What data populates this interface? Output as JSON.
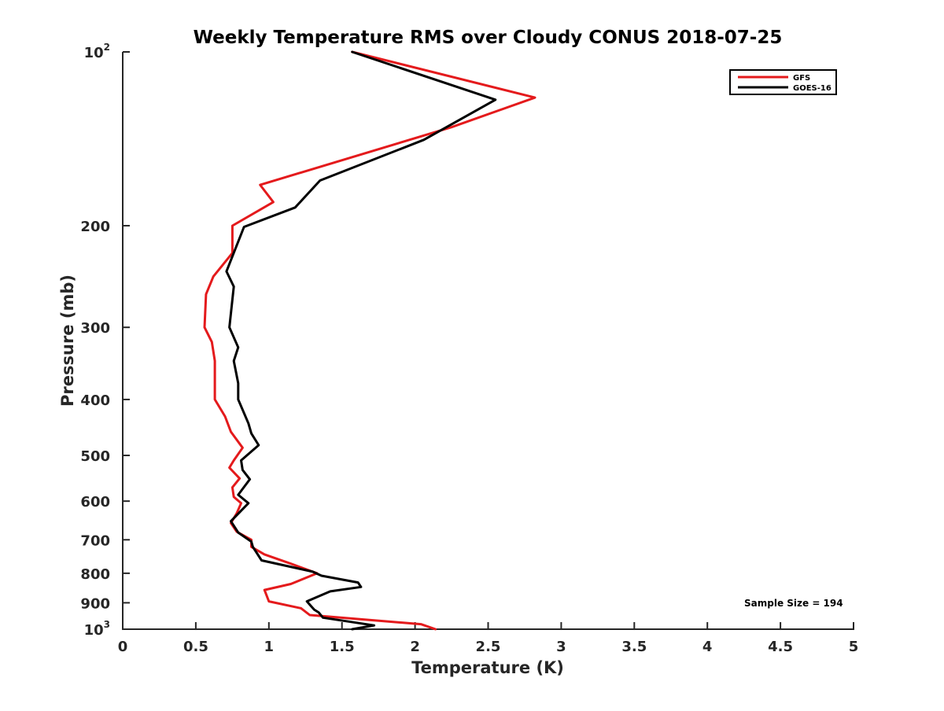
{
  "chart_data": {
    "type": "line",
    "title": "Weekly Temperature RMS over Cloudy CONUS 2018-07-25",
    "xlabel": "Temperature (K)",
    "ylabel": "Pressure (mb)",
    "xlim": [
      0,
      5
    ],
    "ylim": [
      100,
      1000
    ],
    "y_scale": "log",
    "y_reversed": true,
    "grid": false,
    "legend_position": "top-right",
    "x_ticks": [
      {
        "value": 0,
        "label": "0"
      },
      {
        "value": 0.5,
        "label": "0.5"
      },
      {
        "value": 1,
        "label": "1"
      },
      {
        "value": 1.5,
        "label": "1.5"
      },
      {
        "value": 2,
        "label": "2"
      },
      {
        "value": 2.5,
        "label": "2.5"
      },
      {
        "value": 3,
        "label": "3"
      },
      {
        "value": 3.5,
        "label": "3.5"
      },
      {
        "value": 4,
        "label": "4"
      },
      {
        "value": 4.5,
        "label": "4.5"
      },
      {
        "value": 5,
        "label": "5"
      }
    ],
    "y_ticks": [
      {
        "value": 100,
        "base": "10",
        "exp": "2"
      },
      {
        "value": 200,
        "label": "200"
      },
      {
        "value": 300,
        "label": "300"
      },
      {
        "value": 400,
        "label": "400"
      },
      {
        "value": 500,
        "label": "500"
      },
      {
        "value": 600,
        "label": "600"
      },
      {
        "value": 700,
        "label": "700"
      },
      {
        "value": 800,
        "label": "800"
      },
      {
        "value": 900,
        "label": "900"
      },
      {
        "value": 1000,
        "base": "10",
        "exp": "3"
      }
    ],
    "annotation": "Sample Size = 194",
    "series": [
      {
        "name": "GFS",
        "color": "#e41a1c",
        "points": [
          [
            1.57,
            100
          ],
          [
            2.82,
            120
          ],
          [
            2.25,
            135
          ],
          [
            1.65,
            150
          ],
          [
            0.94,
            170
          ],
          [
            1.03,
            182
          ],
          [
            0.75,
            200
          ],
          [
            0.75,
            223
          ],
          [
            0.62,
            245
          ],
          [
            0.57,
            263
          ],
          [
            0.56,
            300
          ],
          [
            0.61,
            318
          ],
          [
            0.63,
            343
          ],
          [
            0.63,
            400
          ],
          [
            0.7,
            428
          ],
          [
            0.74,
            455
          ],
          [
            0.82,
            485
          ],
          [
            0.76,
            510
          ],
          [
            0.73,
            525
          ],
          [
            0.8,
            548
          ],
          [
            0.75,
            568
          ],
          [
            0.76,
            590
          ],
          [
            0.81,
            605
          ],
          [
            0.78,
            630
          ],
          [
            0.74,
            655
          ],
          [
            0.78,
            678
          ],
          [
            0.88,
            700
          ],
          [
            0.88,
            720
          ],
          [
            0.97,
            742
          ],
          [
            1.15,
            770
          ],
          [
            1.33,
            800
          ],
          [
            1.15,
            835
          ],
          [
            0.97,
            855
          ],
          [
            1.0,
            895
          ],
          [
            1.22,
            920
          ],
          [
            1.28,
            945
          ],
          [
            2.04,
            980
          ],
          [
            2.14,
            1000
          ]
        ]
      },
      {
        "name": "GOES-16",
        "color": "#000000",
        "points": [
          [
            1.57,
            100
          ],
          [
            2.55,
            121
          ],
          [
            2.06,
            142
          ],
          [
            1.35,
            167
          ],
          [
            1.18,
            186
          ],
          [
            0.83,
            201
          ],
          [
            0.71,
            240
          ],
          [
            0.76,
            255
          ],
          [
            0.73,
            300
          ],
          [
            0.79,
            325
          ],
          [
            0.76,
            343
          ],
          [
            0.79,
            375
          ],
          [
            0.79,
            400
          ],
          [
            0.86,
            440
          ],
          [
            0.88,
            458
          ],
          [
            0.93,
            480
          ],
          [
            0.81,
            510
          ],
          [
            0.82,
            530
          ],
          [
            0.87,
            550
          ],
          [
            0.79,
            585
          ],
          [
            0.86,
            605
          ],
          [
            0.74,
            650
          ],
          [
            0.79,
            680
          ],
          [
            0.88,
            705
          ],
          [
            0.89,
            720
          ],
          [
            0.95,
            760
          ],
          [
            1.3,
            795
          ],
          [
            1.36,
            808
          ],
          [
            1.61,
            830
          ],
          [
            1.63,
            845
          ],
          [
            1.42,
            860
          ],
          [
            1.26,
            895
          ],
          [
            1.31,
            925
          ],
          [
            1.34,
            935
          ],
          [
            1.37,
            955
          ],
          [
            1.72,
            985
          ],
          [
            1.57,
            1000
          ]
        ]
      }
    ]
  }
}
